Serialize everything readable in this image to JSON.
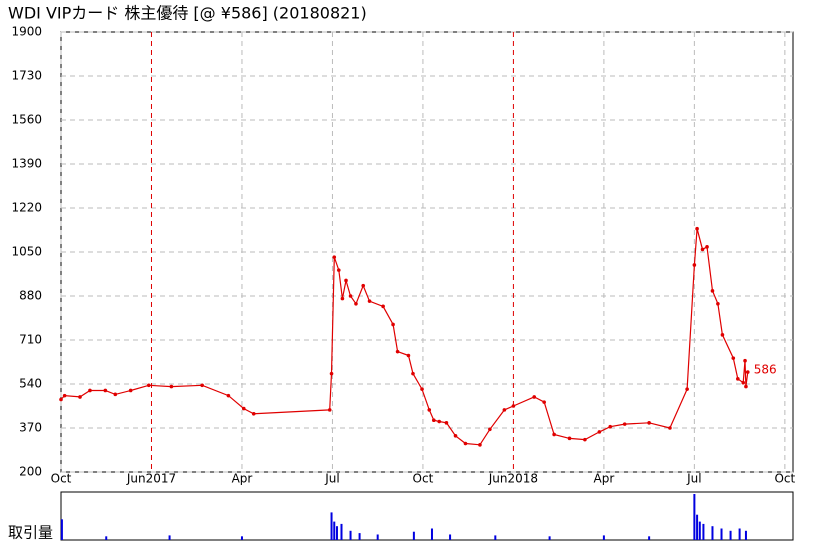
{
  "chart_data": {
    "type": "line",
    "title": "WDI VIPカード  株主優待  [@ ¥586] (20180821)",
    "annotation": "586",
    "volume_label": "取引量",
    "xlim": [
      0,
      8.09
    ],
    "xticks": [
      {
        "value": 0,
        "label": "Oct"
      },
      {
        "value": 1,
        "label": "Jun2017"
      },
      {
        "value": 2,
        "label": "Apr"
      },
      {
        "value": 3,
        "label": "Jul"
      },
      {
        "value": 4,
        "label": "Oct"
      },
      {
        "value": 5,
        "label": "Jun2018"
      },
      {
        "value": 6,
        "label": "Apr"
      },
      {
        "value": 7,
        "label": "Jul"
      },
      {
        "value": 8,
        "label": "Oct"
      }
    ],
    "ylim": [
      200,
      1900
    ],
    "yticks": [
      200,
      370,
      540,
      710,
      880,
      1050,
      1220,
      1390,
      1560,
      1730,
      1900
    ],
    "grid": true,
    "series": [
      {
        "color": "#e00000",
        "x": [
          0,
          0.04,
          0.21,
          0.32,
          0.49,
          0.6,
          0.77,
          0.97,
          1.22,
          1.56,
          1.85,
          2.02,
          2.13,
          2.97,
          2.99,
          3.02,
          3.07,
          3.11,
          3.15,
          3.2,
          3.26,
          3.34,
          3.41,
          3.56,
          3.67,
          3.72,
          3.84,
          3.89,
          3.99,
          4.07,
          4.12,
          4.18,
          4.26,
          4.36,
          4.47,
          4.63,
          4.74,
          4.9,
          5.0,
          5.23,
          5.34,
          5.45,
          5.62,
          5.79,
          5.95,
          6.07,
          6.23,
          6.5,
          6.73,
          6.92,
          7.0,
          7.03,
          7.09,
          7.14,
          7.2,
          7.26,
          7.31,
          7.43,
          7.48,
          7.54,
          7.56,
          7.57,
          7.59
        ],
        "values": [
          480,
          495,
          490,
          515,
          515,
          500,
          515,
          535,
          530,
          535,
          495,
          445,
          425,
          440,
          580,
          1030,
          980,
          870,
          940,
          880,
          850,
          920,
          860,
          840,
          770,
          665,
          650,
          580,
          520,
          440,
          400,
          395,
          390,
          340,
          310,
          305,
          365,
          440,
          455,
          490,
          470,
          345,
          330,
          325,
          355,
          375,
          385,
          390,
          370,
          520,
          1000,
          1140,
          1060,
          1070,
          900,
          850,
          730,
          640,
          560,
          545,
          630,
          530,
          586
        ]
      }
    ],
    "volume": {
      "color": "#0000e0",
      "vlim": [
        0,
        100
      ],
      "x": [
        0.01,
        0.5,
        1.2,
        2.0,
        2.99,
        3.02,
        3.05,
        3.1,
        3.2,
        3.3,
        3.5,
        3.9,
        4.1,
        4.3,
        4.8,
        5.4,
        6.0,
        6.5,
        7.0,
        7.03,
        7.06,
        7.1,
        7.2,
        7.3,
        7.4,
        7.5,
        7.57
      ],
      "values": [
        45,
        8,
        10,
        8,
        60,
        40,
        30,
        35,
        20,
        15,
        12,
        18,
        25,
        12,
        10,
        8,
        10,
        8,
        100,
        55,
        40,
        35,
        30,
        25,
        20,
        25,
        20
      ]
    }
  }
}
